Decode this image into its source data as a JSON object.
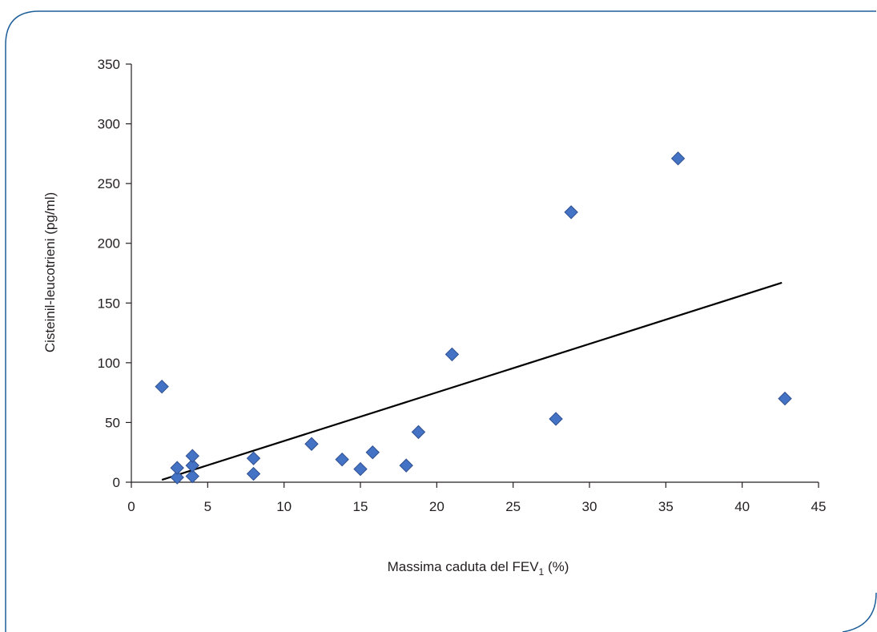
{
  "chart_data": {
    "type": "scatter",
    "title": "",
    "xlabel": "Massima caduta del FEV",
    "xlabel_subscript": "1",
    "xlabel_suffix": " (%)",
    "ylabel": "Cisteinil-leucotrieni (pg/ml)",
    "xlim": [
      0,
      45
    ],
    "ylim": [
      0,
      350
    ],
    "x_ticks": [
      0,
      5,
      10,
      15,
      20,
      25,
      30,
      35,
      40,
      45
    ],
    "y_ticks": [
      0,
      50,
      100,
      150,
      200,
      250,
      300,
      350
    ],
    "grid": false,
    "legend": "none",
    "marker": "diamond",
    "marker_color": "#4472c4",
    "marker_edge_color": "#2f4f8f",
    "trendline_color": "#000000",
    "frame_color": "#1f5f99",
    "series": [
      {
        "points": [
          {
            "x": 2,
            "y": 80
          },
          {
            "x": 3,
            "y": 4
          },
          {
            "x": 3,
            "y": 12
          },
          {
            "x": 4,
            "y": 5
          },
          {
            "x": 4,
            "y": 14
          },
          {
            "x": 4,
            "y": 22
          },
          {
            "x": 8,
            "y": 7
          },
          {
            "x": 8,
            "y": 20
          },
          {
            "x": 11.8,
            "y": 32
          },
          {
            "x": 13.8,
            "y": 19
          },
          {
            "x": 15,
            "y": 11
          },
          {
            "x": 15.8,
            "y": 25
          },
          {
            "x": 18,
            "y": 14
          },
          {
            "x": 18.8,
            "y": 42
          },
          {
            "x": 21,
            "y": 107
          },
          {
            "x": 27.8,
            "y": 53
          },
          {
            "x": 28.8,
            "y": 226
          },
          {
            "x": 35.8,
            "y": 271
          },
          {
            "x": 42.8,
            "y": 70
          }
        ]
      }
    ],
    "trendline": {
      "x": [
        2,
        42.6
      ],
      "y": [
        2,
        167
      ]
    }
  }
}
